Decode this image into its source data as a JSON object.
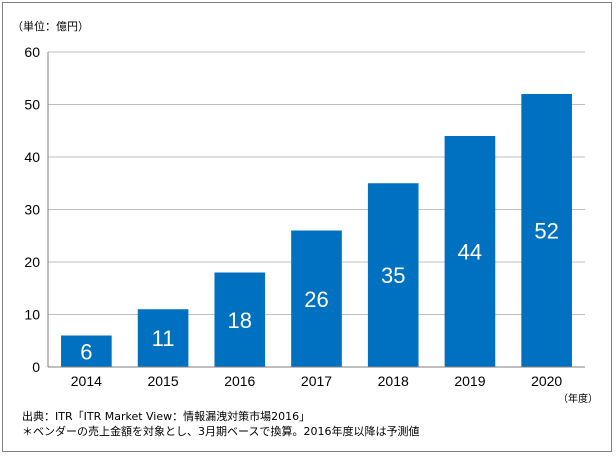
{
  "chart_data": {
    "type": "bar",
    "unit_label": "（単位：億円）",
    "categories": [
      "2014",
      "2015",
      "2016",
      "2017",
      "2018",
      "2019",
      "2020"
    ],
    "values": [
      6,
      11,
      18,
      26,
      35,
      44,
      52
    ],
    "data_labels": [
      "6",
      "11",
      "18",
      "26",
      "35",
      "44",
      "52"
    ],
    "x_unit_label": "（年度）",
    "ylim": [
      0,
      60
    ],
    "yticks": [
      0,
      10,
      20,
      30,
      40,
      50,
      60
    ],
    "ytick_labels": [
      "0",
      "10",
      "20",
      "30",
      "40",
      "50",
      "60"
    ],
    "grid": true,
    "bar_color": "#0070c0",
    "label_color": "#ffffff",
    "gridline_color": "#bfbfbf",
    "axis_color": "#7f7f7f"
  },
  "notes": {
    "source": "出典：ITR「ITR Market View：情報漏洩対策市場2016」",
    "footnote": "＊ベンダーの売上金額を対象とし、3月期ベースで換算。2016年度以降は予測値"
  }
}
